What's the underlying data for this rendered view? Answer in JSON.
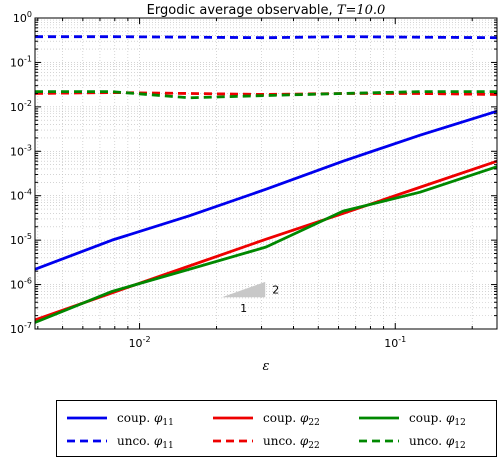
{
  "chart_data": {
    "type": "line",
    "title": "Ergodic average observable, ",
    "title_math": "T=10.0",
    "xlabel": "ε",
    "ylabel": "",
    "xscale": "log",
    "yscale": "log",
    "xlim": [
      0.0039,
      0.25
    ],
    "ylim": [
      1e-07,
      1
    ],
    "grid": true,
    "legend_placement": "below",
    "x_ticks": [
      {
        "value": 0.01,
        "base": "10",
        "exp": "-2"
      },
      {
        "value": 0.1,
        "base": "10",
        "exp": "-1"
      }
    ],
    "y_ticks": [
      {
        "value": 1e-07,
        "base": "10",
        "exp": "-7"
      },
      {
        "value": 1e-06,
        "base": "10",
        "exp": "-6"
      },
      {
        "value": 1e-05,
        "base": "10",
        "exp": "-5"
      },
      {
        "value": 0.0001,
        "base": "10",
        "exp": "-4"
      },
      {
        "value": 0.001,
        "base": "10",
        "exp": "-3"
      },
      {
        "value": 0.01,
        "base": "10",
        "exp": "-2"
      },
      {
        "value": 0.1,
        "base": "10",
        "exp": "-1"
      },
      {
        "value": 1,
        "base": "10",
        "exp": "0"
      }
    ],
    "x": [
      0.0039,
      0.0078,
      0.0156,
      0.03125,
      0.0625,
      0.125,
      0.25
    ],
    "series": [
      {
        "name": "coup. φ11",
        "label_prefix": "coup. ",
        "sym": "φ",
        "sub": "11",
        "color": "#0000ee",
        "dash": false,
        "values": [
          2.2e-06,
          1e-05,
          3.5e-05,
          0.00014,
          0.0006,
          0.0023,
          0.008
        ]
      },
      {
        "name": "unco. φ11",
        "label_prefix": "unco. ",
        "sym": "φ",
        "sub": "11",
        "color": "#0000ee",
        "dash": true,
        "values": [
          0.38,
          0.38,
          0.37,
          0.36,
          0.38,
          0.37,
          0.36
        ]
      },
      {
        "name": "coup. φ22",
        "label_prefix": "coup. ",
        "sym": "φ",
        "sub": "22",
        "color": "#ee0000",
        "dash": false,
        "values": [
          1.6e-07,
          6.5e-07,
          2.6e-06,
          1.05e-05,
          4e-05,
          0.000155,
          0.0006
        ]
      },
      {
        "name": "unco. φ22",
        "label_prefix": "unco. ",
        "sym": "φ",
        "sub": "22",
        "color": "#ee0000",
        "dash": true,
        "values": [
          0.02,
          0.021,
          0.02,
          0.019,
          0.02,
          0.02,
          0.019
        ]
      },
      {
        "name": "coup. φ12",
        "label_prefix": "coup. ",
        "sym": "φ",
        "sub": "12",
        "color": "#008800",
        "dash": false,
        "values": [
          1.4e-07,
          7e-07,
          2.2e-06,
          7e-06,
          4.5e-05,
          0.00012,
          0.00045
        ]
      },
      {
        "name": "unco. φ12",
        "label_prefix": "unco. ",
        "sym": "φ",
        "sub": "12",
        "color": "#008800",
        "dash": true,
        "values": [
          0.022,
          0.022,
          0.016,
          0.018,
          0.02,
          0.022,
          0.022
        ]
      }
    ],
    "slope_triangle": {
      "x_range": [
        0.021,
        0.031
      ],
      "y_range": [
        5.2e-07,
        1.15e-06
      ],
      "run_label": "1",
      "rise_label": "2",
      "color": "#c8c8c8"
    }
  }
}
